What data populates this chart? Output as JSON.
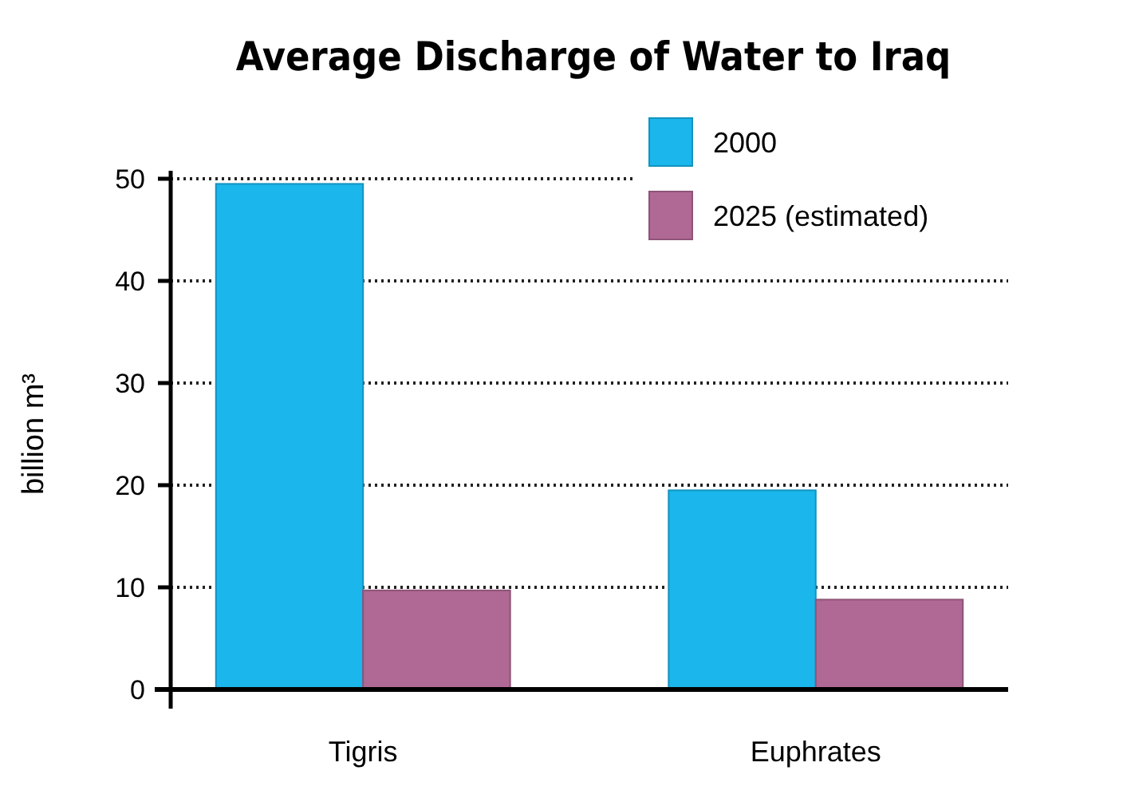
{
  "chart_data": {
    "type": "bar",
    "title": "Average Discharge of Water to Iraq",
    "ylabel": "billion m³",
    "categories": [
      "Tigris",
      "Euphrates"
    ],
    "series": [
      {
        "name": "2000",
        "color": "#1ab6ec",
        "values": [
          49.5,
          19.5
        ]
      },
      {
        "name": "2025 (estimated)",
        "color": "#b06894",
        "values": [
          9.7,
          8.8
        ]
      }
    ],
    "ylim": [
      0,
      50
    ],
    "yticks": [
      0,
      10,
      20,
      30,
      40,
      50
    ],
    "grid": "y",
    "legend": "top right"
  }
}
